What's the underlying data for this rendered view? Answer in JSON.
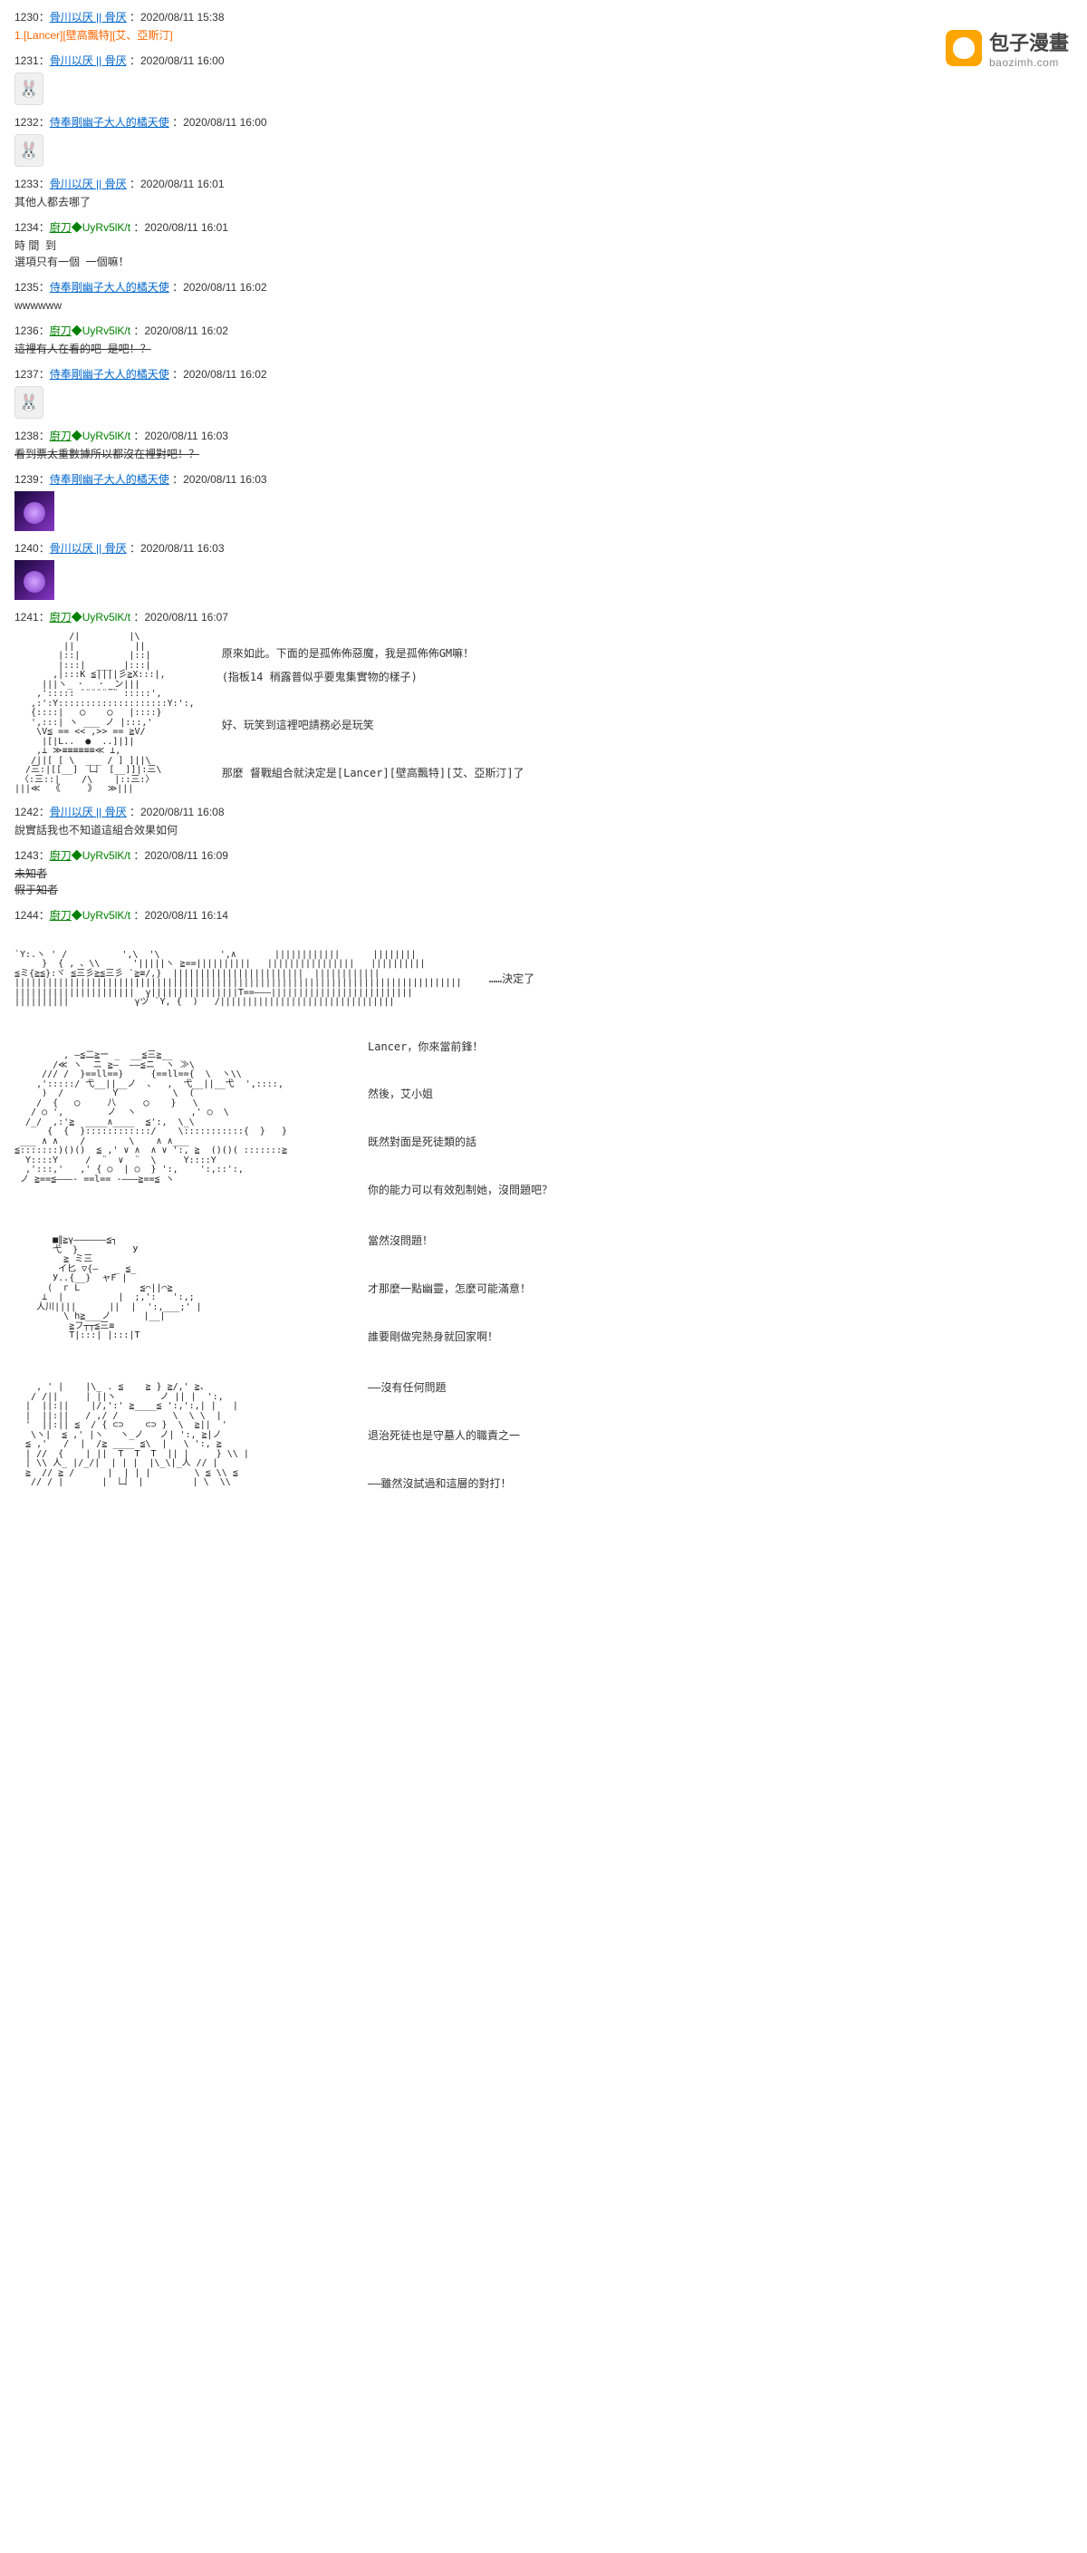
{
  "watermark": {
    "title": "包子漫畫",
    "subtitle": "baozimh.com"
  },
  "posts": [
    {
      "num": "1230",
      "user": "骨川以厌 || 骨厌",
      "user_class": "user-blue",
      "ts": "2020/08/11 15:38",
      "body_html": "<span class='orange'>1.[Lancer][壁高飄特][艾、亞斯汀]</span>"
    },
    {
      "num": "1231",
      "user": "骨川以厌 || 骨厌",
      "user_class": "user-blue",
      "ts": "2020/08/11 16:00",
      "icon": "bunny"
    },
    {
      "num": "1232",
      "user": "侍奉剛幽子大人的橘天使",
      "user_class": "user-blue",
      "ts": "2020/08/11 16:00",
      "icon": "bunny"
    },
    {
      "num": "1233",
      "user": "骨川以厌 || 骨厌",
      "user_class": "user-blue",
      "ts": "2020/08/11 16:01",
      "body_html": "其他人都去哪了"
    },
    {
      "num": "1234",
      "user": "廚刀",
      "user_class": "user-green",
      "tag": "◆UyRv5lK/t",
      "tag_class": "tag-green",
      "ts": "2020/08/11 16:01",
      "body_html": "時 間  到\n選項只有一個  一個嘛！"
    },
    {
      "num": "1235",
      "user": "侍奉剛幽子大人的橘天使",
      "user_class": "user-blue",
      "ts": "2020/08/11 16:02",
      "body_html": "wwwwww"
    },
    {
      "num": "1236",
      "user": "廚刀",
      "user_class": "user-green",
      "tag": "◆UyRv5lK/t",
      "tag_class": "tag-green",
      "ts": "2020/08/11 16:02",
      "body_html": "<span class='strike'>這裡有人在看的吧  是吧！？</span>"
    },
    {
      "num": "1237",
      "user": "侍奉剛幽子大人的橘天使",
      "user_class": "user-blue",
      "ts": "2020/08/11 16:02",
      "icon": "bunny"
    },
    {
      "num": "1238",
      "user": "廚刀",
      "user_class": "user-green",
      "tag": "◆UyRv5lK/t",
      "tag_class": "tag-green",
      "ts": "2020/08/11 16:03",
      "body_html": "<span class='strike'>看到票太重數據所以都沒在裡對吧！？</span>"
    },
    {
      "num": "1239",
      "user": "侍奉剛幽子大人的橘天使",
      "user_class": "user-blue",
      "ts": "2020/08/11 16:03",
      "icon": "avatar"
    },
    {
      "num": "1240",
      "user": "骨川以厌 || 骨厌",
      "user_class": "user-blue",
      "ts": "2020/08/11 16:03",
      "icon": "avatar"
    },
    {
      "num": "1241",
      "user": "廚刀",
      "user_class": "user-green",
      "tag": "◆UyRv5lK/t",
      "tag_class": "tag-green",
      "ts": "2020/08/11 16:07",
      "ascii": "large1",
      "dialogue": "原來如此。下面的是孤佈佈惡魔，我是孤佈佈GM嘛！\n(指板14  稍露普似乎要鬼集實物的樣子)\n\n好、玩笑到這裡吧請務必是玩笑\n\n那麼  督戰組合就決定是[Lancer][壁高飄特][艾、亞斯汀]了"
    },
    {
      "num": "1242",
      "user": "骨川以厌 || 骨厌",
      "user_class": "user-blue",
      "ts": "2020/08/11 16:08",
      "body_html": "說實話我也不知道這組合效果如何"
    },
    {
      "num": "1243",
      "user": "廚刀",
      "user_class": "user-green",
      "tag": "◆UyRv5lK/t",
      "tag_class": "tag-green",
      "ts": "2020/08/11 16:09",
      "body_html": "<span class='strike'>未知者</span>\n<span class='strike'>假于知者</span>"
    },
    {
      "num": "1244",
      "user": "廚刀",
      "user_class": "user-green",
      "tag": "◆UyRv5lK/t",
      "tag_class": "tag-green",
      "ts": "2020/08/11 16:14",
      "ascii": "panels",
      "panels": [
        {
          "id": "p1",
          "text": "……決定了"
        },
        {
          "id": "p2",
          "text": "Lancer，你來當前鋒！\n\n然後，艾小姐\n\n既然對面是死徒類的話\n\n你的能力可以有效剋制她，沒問題吧？"
        },
        {
          "id": "p3",
          "text": "當然沒問題！\n\n才那麼一點幽靈，怎麼可能滿意！\n\n誰要剛做完熱身就回家啊！"
        },
        {
          "id": "p4",
          "text": "——沒有任何問題\n\n退治死徒也是守墓人的職責之一\n\n——雖然沒試過和這層的對打！"
        }
      ]
    }
  ],
  "ascii": {
    "large1": "          /|         |\\\n         ||           ||\n        |::|         |::|\n        |:::|  ___  |:::|\n       ,|:::K ≦||||彡≧X:::|,\n     |||ヽ_ ･   ･ _ン|||\n    ,'::::: ¨¨¨¨¨¨¨ :::::',\n   ,:':Y::::::::::::::::::::Y:':,\n   {::::|   ◯    ◯   |::::}\n   ',:::| ヽ ___ ノ |:::,'\n    \\V≦ == << ,>> == ≧V/\n     |[|L..  ●  ..]|]|\n    ,⊥ ≫≡≡≡≡≡≡≪ ⊥,\n   /||[ [ \\  ___ / ] ]||\\\n  /三:|[[__]  凵  [__]]|:三\\\n 〈:三::|    /\\    |::三:〉\n|||≪  《     》  ≫|||",
    "p1": "`Y:.ヽ ' /          ',\\  '\\           ',∧       ||||||||||||      ||||||||\n     }  { , 、\\\\      '|||||ヽ ≧==||||||||||   ||||||||||||||||   ||||||||||\n≦ミ{≧≦}:ヾ ≦三彡≧≦三彡 `≧≡/,}  ||||||||||||||||||||||||  ||||||||||||\n||||||||||||||||||||||||||||||||||||||||||||||||||||||||||||||||||||||||||||||||||\n||||||||||||||||||||||  γ||||||||||||||||T==―――|||||||||||||||||||||||||| \n||||||||||            γヅ `Y, {  )   /||||||||||||||||||||||||||||||||",
    "p2": "         , ―≦二≧ー _  __≦三≧__\n       /≪ ヽ  ニ ≧―  ――≦ニ  ヽ ≫\\\n     /// /  }==ll==}     {==ll=={  \\  ヽ\\\\\n    ,':::::/ 弋__||__ノ  、  ,  弋__||__弋  ',::::,\n     )  /         Y          \\  (\n    /  {   ◯     八     ◯    }   \\\n   / ○ ',        ノ  ヽ          ,' ○  \\\n  /_/  ,:'≧  ____∧____  ≦':,  \\_\\\n      {  {  }::::::::::::/    \\:::::::::::{  }   }\n ___ ∧ ∧    /        \\    ∧ ∧___\n≦:::::::)()()  ≦ ,' ∨ ∧  ∧ ∨ ':, ≧  ()()( :::::::≧\n  Y::::Y     /  ¨  ∨  ¨  \\     Y::::Y\n  ,':::,'   ,' { ○  | ○  } ':,    ':,::':,\n ノ ≧==≦―――- ==l== -―――≧==≦ ヽ",
    "p3": "       ■∥≧γ――――――≦┐\n       弋  }          У\n         ≧ ミ三        \n        イ匕 ▽{―   _ ≦_\n       У..{__}  ャF |\n      (  г L           ≦⌒||⌒≧\n     ⊥  |          |  ;,':   ':,;\n    人川||||      ||  |  ':,___;' |\n         \\ h≧___ノ      |__|\n          ≧フ┬┬≦三≡\n          T|:::| |:::|T",
    "p4": "    , ' |    |\\_ . ≦    ≧ } ≧/,' ≧、\n   / /||     | ||ヽ        ノ || |  ':,\n  |  ||:||    |/,':' ≧____≦ ':,':,| |   |\n  |  ||:||   / ,/ /          \\  \\ \\  |\n  '  ||:|| ≦  / { ⊂⊃    ⊂⊃ }  \\  ≧||  '\n   \\ヽ|  ≦ ,' |ヽ   ヽ_ノ   ノ| ':, ≧|ノ\n  ≦ ,'   /  |  /≧ ____ ≦\\  |   \\ ':, ≧\n  | //  {    | ||  T  T  T  || |     } \\\\ |\n  | \\\\ 人_ |/_/|  | | |  |\\_\\|_人 // |\n  ≧  // ≧ /      |  | | |        \\ ≦ \\\\ ≦\n   // / |       |  凵  |         | \\  \\\\"
  }
}
